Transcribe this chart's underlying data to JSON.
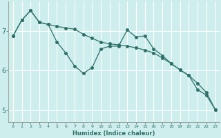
{
  "xlabel": "Humidex (Indice chaleur)",
  "background_color": "#ceeeed",
  "grid_color": "#ffffff",
  "line_color": "#2d7068",
  "xlim": [
    -0.5,
    23.5
  ],
  "ylim": [
    4.7,
    7.75
  ],
  "yticks": [
    5,
    6,
    7
  ],
  "xticks": [
    0,
    1,
    2,
    3,
    4,
    5,
    6,
    7,
    8,
    9,
    10,
    11,
    12,
    13,
    14,
    15,
    16,
    17,
    18,
    19,
    20,
    21,
    22,
    23
  ],
  "series1_x": [
    0,
    1,
    2,
    3,
    4,
    5,
    6,
    7,
    8,
    9,
    10,
    11,
    12,
    13,
    14,
    15,
    16,
    17,
    18,
    19,
    20,
    21,
    22,
    23
  ],
  "series1_y": [
    6.88,
    7.28,
    7.52,
    7.22,
    7.17,
    7.12,
    7.08,
    7.05,
    6.92,
    6.82,
    6.72,
    6.68,
    6.65,
    6.62,
    6.58,
    6.52,
    6.45,
    6.32,
    6.18,
    6.02,
    5.88,
    5.68,
    5.45,
    5.02
  ],
  "series2_x": [
    0,
    1,
    2,
    3,
    4,
    5,
    6,
    7,
    8,
    9,
    10,
    11,
    12,
    13,
    14,
    15,
    16,
    17,
    18,
    19,
    20,
    21,
    22,
    23
  ],
  "series2_y": [
    6.88,
    7.28,
    7.52,
    7.22,
    7.17,
    6.72,
    6.45,
    6.12,
    5.93,
    6.08,
    6.55,
    6.62,
    6.62,
    7.03,
    6.85,
    6.88,
    6.55,
    6.38,
    6.18,
    6.02,
    5.88,
    5.52,
    5.38,
    5.02
  ]
}
